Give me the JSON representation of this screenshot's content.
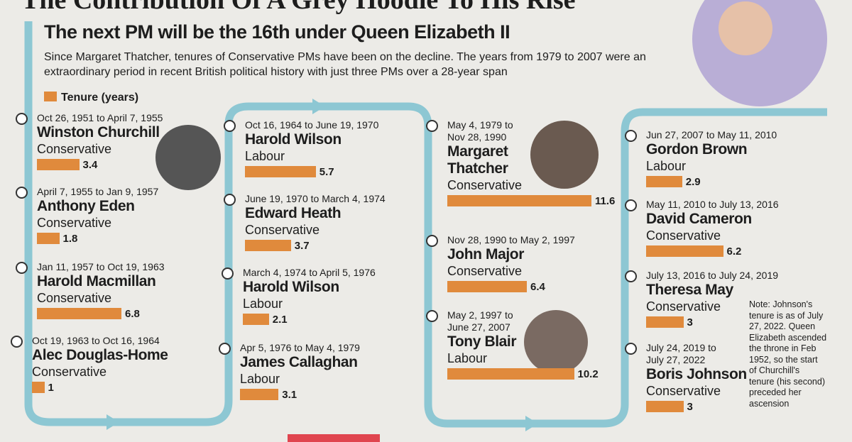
{
  "header": {
    "headline": "The Contribution Of A Grey Hoodie To His Rise",
    "title": "The next PM will be the 16th under Queen Elizabeth II",
    "subtitle": "Since Margaret Thatcher, tenures of Conservative PMs have been on the decline. The years from 1979 to 2007 were an extraordinary period in recent British political history with just three PMs over a 28-year span",
    "legend": "Tenure (years)"
  },
  "pms": [
    {
      "dates": "Oct 26, 1951 to April 7, 1955",
      "name": "Winston Churchill",
      "party": "Conservative",
      "tenure": 3.4
    },
    {
      "dates": "April 7, 1955 to Jan 9, 1957",
      "name": "Anthony Eden",
      "party": "Conservative",
      "tenure": 1.8
    },
    {
      "dates": "Jan 11, 1957 to Oct 19, 1963",
      "name": "Harold Macmillan",
      "party": "Conservative",
      "tenure": 6.8
    },
    {
      "dates": "Oct 19, 1963 to Oct 16, 1964",
      "name": "Alec Douglas-Home",
      "party": "Conservative",
      "tenure": 1
    },
    {
      "dates": "Oct 16, 1964 to June 19, 1970",
      "name": "Harold Wilson",
      "party": "Labour",
      "tenure": 5.7
    },
    {
      "dates": "June 19, 1970 to March 4, 1974",
      "name": "Edward Heath",
      "party": "Conservative",
      "tenure": 3.7
    },
    {
      "dates": "March 4, 1974 to April 5, 1976",
      "name": "Harold Wilson",
      "party": "Labour",
      "tenure": 2.1
    },
    {
      "dates": "Apr 5, 1976 to May 4, 1979",
      "name": "James Callaghan",
      "party": "Labour",
      "tenure": 3.1
    },
    {
      "dates": "May 4, 1979 to Nov 28, 1990",
      "name": "Margaret Thatcher",
      "party": "Conservative",
      "tenure": 11.6
    },
    {
      "dates": "Nov 28, 1990 to May 2, 1997",
      "name": "John Major",
      "party": "Conservative",
      "tenure": 6.4
    },
    {
      "dates": "May 2, 1997 to June 27, 2007",
      "name": "Tony Blair",
      "party": "Labour",
      "tenure": 10.2
    },
    {
      "dates": "Jun 27, 2007 to May 11, 2010",
      "name": "Gordon Brown",
      "party": "Labour",
      "tenure": 2.9
    },
    {
      "dates": "May 11, 2010 to July 13, 2016",
      "name": "David Cameron",
      "party": "Conservative",
      "tenure": 6.2
    },
    {
      "dates": "July 13, 2016 to July 24, 2019",
      "name": "Theresa May",
      "party": "Conservative",
      "tenure": 3
    },
    {
      "dates": "July 24, 2019 to July 27, 2022",
      "name": "Boris Johnson",
      "party": "Conservative",
      "tenure": 3
    }
  ],
  "note": "Note: Johnson's tenure is as of July 27, 2022. Queen Elizabeth ascended the throne in Feb 1952, so the start of Churchill's tenure (his second) preceded her ascension"
}
